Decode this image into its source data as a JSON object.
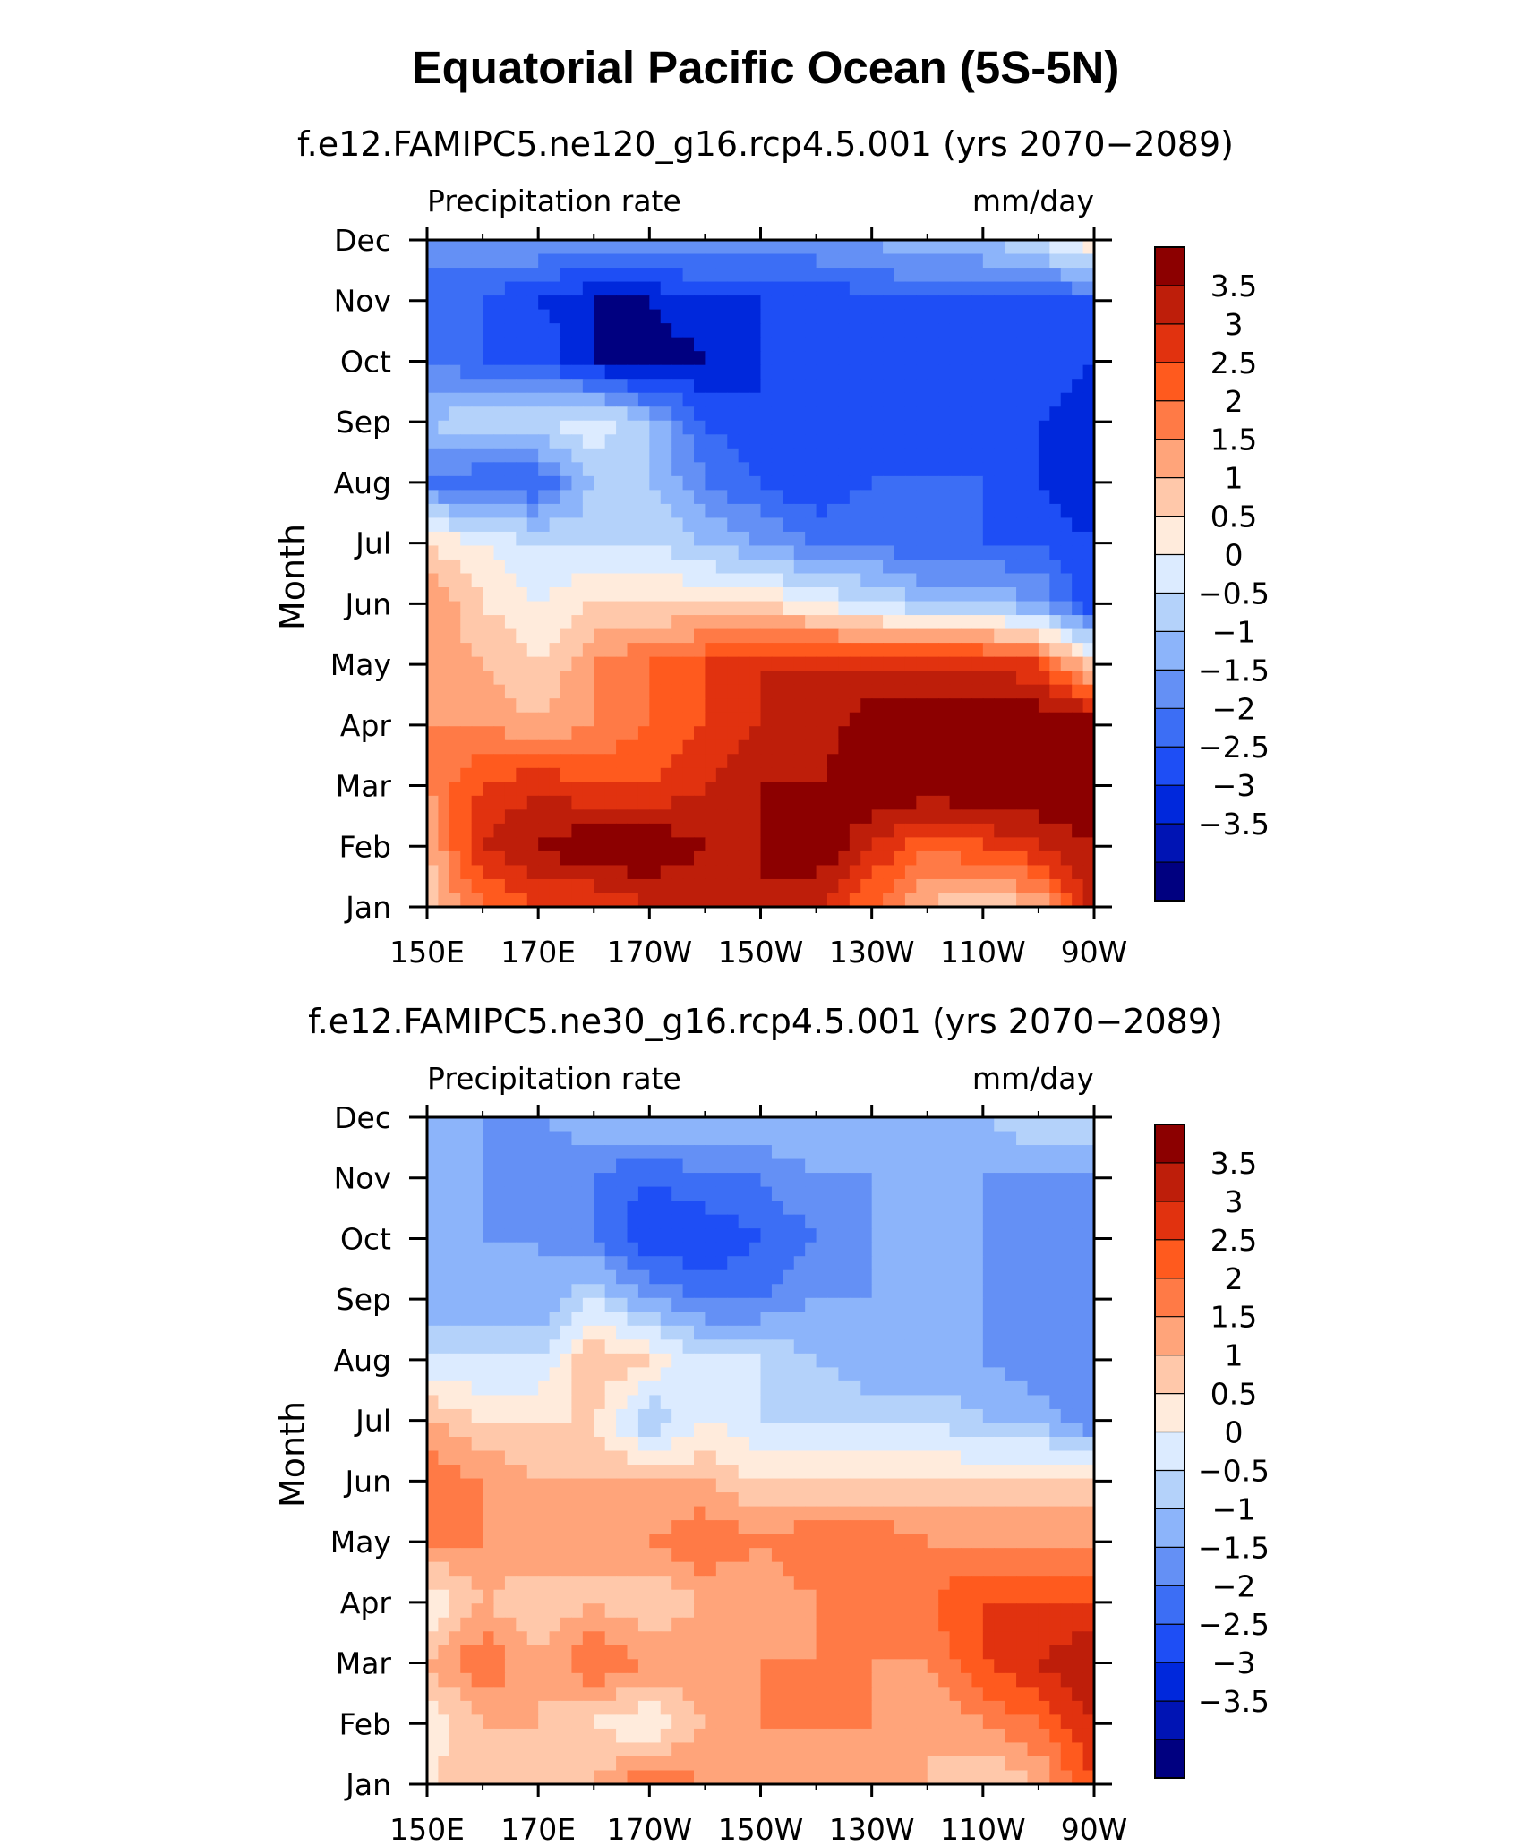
{
  "figure": {
    "title": "Equatorial Pacific Ocean (5S-5N)"
  },
  "colormap": [
    "#000080",
    "#0014b4",
    "#0028dc",
    "#1e4ef5",
    "#3c6ef5",
    "#6490f5",
    "#8cb4fa",
    "#b4d2fa",
    "#dcebff",
    "#ffebdc",
    "#ffc8aa",
    "#ffa47a",
    "#ff7a46",
    "#ff5a1e",
    "#e1320f",
    "#be1e0a",
    "#8c0000"
  ],
  "chart_data": [
    {
      "type": "heatmap",
      "subtitle": "f.e12.FAMIPC5.ne120_g16.rcp4.5.001 (yrs 2070−2089)",
      "left_label": "Precipitation rate",
      "right_label": "mm/day",
      "ylabel": "Month",
      "xlabel": "",
      "x_ticks": [
        "150E",
        "170E",
        "170W",
        "150W",
        "130W",
        "110W",
        "90W"
      ],
      "x_range": [
        150,
        270
      ],
      "y_ticks": [
        "Jan",
        "Feb",
        "Mar",
        "Apr",
        "May",
        "Jun",
        "Jul",
        "Aug",
        "Sep",
        "Oct",
        "Nov",
        "Dec"
      ],
      "colorbar_levels": [
        "3.5",
        "3",
        "2.5",
        "2",
        "1.5",
        "1",
        "0.5",
        "0",
        "−0.5",
        "−1",
        "−1.5",
        "−2",
        "−2.5",
        "−3",
        "−3.5"
      ],
      "x": [
        150,
        160,
        170,
        180,
        190,
        200,
        210,
        220,
        230,
        240,
        250,
        260,
        270
      ],
      "z": [
        [
          0.5,
          2.0,
          2.5,
          2.5,
          3.0,
          3.0,
          3.5,
          3.0,
          2.0,
          1.0,
          0.5,
          1.0,
          3.5
        ],
        [
          1.0,
          3.0,
          3.5,
          4.0,
          4.0,
          3.5,
          3.5,
          4.0,
          3.0,
          2.0,
          2.5,
          3.0,
          3.5
        ],
        [
          1.5,
          2.5,
          3.0,
          2.5,
          2.5,
          3.0,
          3.5,
          3.5,
          4.0,
          4.0,
          4.0,
          4.0,
          4.0
        ],
        [
          1.5,
          1.5,
          1.0,
          1.5,
          2.0,
          2.5,
          3.0,
          3.0,
          4.0,
          4.0,
          4.0,
          4.0,
          4.0
        ],
        [
          1.5,
          1.0,
          0.5,
          1.5,
          2.0,
          2.5,
          3.0,
          3.0,
          3.0,
          3.0,
          3.0,
          2.5,
          0.5
        ],
        [
          1.5,
          0.5,
          0.0,
          0.5,
          0.5,
          0.5,
          0.5,
          0.0,
          -0.5,
          -1.0,
          -1.0,
          -1.5,
          -3.0
        ],
        [
          0.5,
          0.0,
          -0.5,
          -0.5,
          -0.5,
          -1.0,
          -1.5,
          -2.0,
          -2.0,
          -2.5,
          -2.5,
          -2.5,
          -3.0
        ],
        [
          -2.0,
          -2.5,
          -2.5,
          -1.0,
          -1.0,
          -2.0,
          -2.5,
          -3.0,
          -2.5,
          -2.5,
          -2.5,
          -3.0,
          -3.5
        ],
        [
          -1.0,
          -0.5,
          -0.5,
          0.0,
          -1.0,
          -2.5,
          -3.0,
          -3.0,
          -3.0,
          -2.5,
          -3.0,
          -3.0,
          -3.5
        ],
        [
          -2.0,
          -2.5,
          -2.5,
          -3.5,
          -4.0,
          -3.5,
          -3.0,
          -3.0,
          -3.0,
          -3.0,
          -3.0,
          -2.5,
          -3.0
        ],
        [
          -2.5,
          -2.5,
          -3.0,
          -3.5,
          -3.5,
          -3.0,
          -3.0,
          -3.0,
          -2.5,
          -2.5,
          -2.5,
          -2.5,
          -2.5
        ],
        [
          -1.5,
          -1.5,
          -1.5,
          -1.5,
          -1.5,
          -1.5,
          -1.5,
          -1.5,
          -1.5,
          -1.0,
          -1.0,
          -0.5,
          0.5
        ]
      ]
    },
    {
      "type": "heatmap",
      "subtitle": "f.e12.FAMIPC5.ne30_g16.rcp4.5.001 (yrs 2070−2089)",
      "left_label": "Precipitation rate",
      "right_label": "mm/day",
      "ylabel": "Month",
      "xlabel": "",
      "x_ticks": [
        "150E",
        "170E",
        "170W",
        "150W",
        "130W",
        "110W",
        "90W"
      ],
      "x_range": [
        150,
        270
      ],
      "y_ticks": [
        "Jan",
        "Feb",
        "Mar",
        "Apr",
        "May",
        "Jun",
        "Jul",
        "Aug",
        "Sep",
        "Oct",
        "Nov",
        "Dec"
      ],
      "colorbar_levels": [
        "3.5",
        "3",
        "2.5",
        "2",
        "1.5",
        "1",
        "0.5",
        "0",
        "−0.5",
        "−1",
        "−1.5",
        "−2",
        "−2.5",
        "−3",
        "−3.5"
      ],
      "x": [
        150,
        160,
        170,
        180,
        190,
        200,
        210,
        220,
        230,
        240,
        250,
        260,
        270
      ],
      "z": [
        [
          0.5,
          1.0,
          0.5,
          1.0,
          2.0,
          1.5,
          1.0,
          1.5,
          1.0,
          1.0,
          0.5,
          1.0,
          2.5
        ],
        [
          0.0,
          1.0,
          1.0,
          0.5,
          0.0,
          1.0,
          1.5,
          1.5,
          1.5,
          1.0,
          1.5,
          2.0,
          3.0
        ],
        [
          1.0,
          2.0,
          1.0,
          2.0,
          1.5,
          1.5,
          1.5,
          1.5,
          1.5,
          1.5,
          2.5,
          3.0,
          3.5
        ],
        [
          0.0,
          1.0,
          0.5,
          1.0,
          0.5,
          1.0,
          1.0,
          1.5,
          1.5,
          2.0,
          2.5,
          2.5,
          2.5
        ],
        [
          1.5,
          1.5,
          1.5,
          1.0,
          1.5,
          2.0,
          1.5,
          2.0,
          2.0,
          1.5,
          1.5,
          1.5,
          1.5
        ],
        [
          2.0,
          1.5,
          1.0,
          1.0,
          1.0,
          1.0,
          0.5,
          0.5,
          0.5,
          0.5,
          0.5,
          0.5,
          0.5
        ],
        [
          1.0,
          0.5,
          0.5,
          0.5,
          -1.0,
          0.0,
          -0.5,
          -0.5,
          -0.5,
          -0.5,
          -1.0,
          -1.0,
          -2.0
        ],
        [
          -0.5,
          -0.5,
          -0.5,
          1.0,
          0.5,
          -0.5,
          -0.5,
          -1.0,
          -1.5,
          -1.5,
          -1.5,
          -2.0,
          -2.0
        ],
        [
          -1.5,
          -1.5,
          -1.5,
          -0.5,
          -1.5,
          -2.0,
          -2.0,
          -1.5,
          -1.5,
          -1.5,
          -1.5,
          -2.0,
          -2.0
        ],
        [
          -1.5,
          -1.5,
          -1.5,
          -2.0,
          -3.0,
          -3.0,
          -2.5,
          -2.0,
          -1.5,
          -1.5,
          -1.5,
          -2.0,
          -2.0
        ],
        [
          -1.5,
          -1.5,
          -2.0,
          -2.0,
          -2.5,
          -2.0,
          -2.0,
          -1.5,
          -1.5,
          -1.5,
          -1.5,
          -1.5,
          -1.5
        ],
        [
          -1.5,
          -1.5,
          -1.5,
          -1.0,
          -1.0,
          -1.0,
          -1.0,
          -1.0,
          -1.0,
          -1.0,
          -1.0,
          -0.5,
          -0.5
        ]
      ]
    }
  ]
}
